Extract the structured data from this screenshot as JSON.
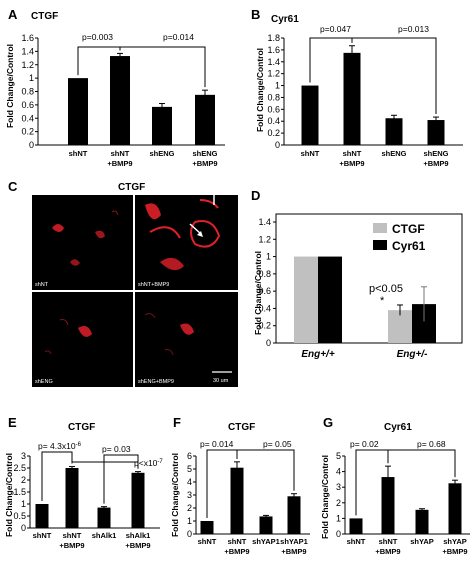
{
  "panels": {
    "A": {
      "label": "A",
      "title": "CTGF",
      "ylabel": "Fold Change/Control",
      "yticks": [
        "0",
        "0.2",
        "0.4",
        "0.6",
        "0.8",
        "1",
        "1.2",
        "1.4",
        "1.6"
      ],
      "categories": [
        [
          "shNT"
        ],
        [
          "shNT",
          "+BMP9"
        ],
        [
          "shENG"
        ],
        [
          "shENG",
          "+BMP9"
        ]
      ],
      "annotations": [
        "p=0.003",
        "p=0.014"
      ]
    },
    "B": {
      "label": "B",
      "title": "Cyr61",
      "ylabel": "Fold Change/Control",
      "yticks": [
        "0",
        "0.2",
        "0.4",
        "0.6",
        "0.8",
        "1",
        "1.2",
        "1.4",
        "1.6",
        "1.8"
      ],
      "categories": [
        [
          "shNT"
        ],
        [
          "shNT",
          "+BMP9"
        ],
        [
          "shENG"
        ],
        [
          "shENG",
          "+BMP9"
        ]
      ],
      "annotations": [
        "p=0.047",
        "p=0.013"
      ]
    },
    "C": {
      "label": "C",
      "title": "CTGF",
      "images": [
        "shNT",
        "shNT+BMP9",
        "shENG",
        "shENG+BMP9"
      ],
      "scale": "30 um"
    },
    "D": {
      "label": "D",
      "ylabel": "Fold Change/Control",
      "yticks": [
        "0",
        "0.2",
        "0.4",
        "0.6",
        "0.8",
        "1",
        "1.2",
        "1.4"
      ],
      "categories": [
        "Eng+/+",
        "Eng+/-"
      ],
      "legend": [
        "CTGF",
        "Cyr61"
      ],
      "annotation": "p<0.05",
      "star": "*"
    },
    "E": {
      "label": "E",
      "title": "CTGF",
      "ylabel": "Fold Change/Control",
      "yticks": [
        "0",
        "0.5",
        "1",
        "1.5",
        "2",
        "2.5",
        "3"
      ],
      "categories": [
        [
          "shNT"
        ],
        [
          "shNT",
          "+BMP9"
        ],
        [
          "shAlk1"
        ],
        [
          "shAlk1",
          "+BMP9"
        ]
      ],
      "ann1_base": "p= 4.3x10",
      "ann1_exp": "-6",
      "ann2": "p= 0.03",
      "ann3_base": "p<x10",
      "ann3_exp": "-7"
    },
    "F": {
      "label": "F",
      "title": "CTGF",
      "ylabel": "Fold Change/Control",
      "yticks": [
        "0",
        "1",
        "2",
        "3",
        "4",
        "5",
        "6"
      ],
      "categories": [
        [
          "shNT"
        ],
        [
          "shNT",
          "+BMP9"
        ],
        [
          "shYAP1"
        ],
        [
          "shYAP1",
          "+BMP9"
        ]
      ],
      "annotations": [
        "p= 0.014",
        "p= 0.05"
      ]
    },
    "G": {
      "label": "G",
      "title": "Cyr61",
      "ylabel": "Fold Change/Control",
      "yticks": [
        "0",
        "1",
        "2",
        "3",
        "4",
        "5"
      ],
      "categories": [
        [
          "shNT"
        ],
        [
          "shNT",
          "+BMP9"
        ],
        [
          "shYAP"
        ],
        [
          "shYAP",
          "+BMP9"
        ]
      ],
      "annotations": [
        "p= 0.02",
        "p= 0.68"
      ]
    }
  },
  "colors": {
    "bar": "#000000",
    "ctgf": "#c0c0c0",
    "cyr61": "#000000",
    "cell": "#e0202a"
  },
  "chart_data": [
    {
      "type": "bar",
      "panel": "A",
      "title": "CTGF",
      "ylabel": "Fold Change/Control",
      "ylim": [
        0,
        1.6
      ],
      "categories": [
        "shNT",
        "shNT +BMP9",
        "shENG",
        "shENG +BMP9"
      ],
      "values": [
        1.0,
        1.33,
        0.57,
        0.75
      ],
      "errors": [
        0,
        0.04,
        0.05,
        0.07
      ]
    },
    {
      "type": "bar",
      "panel": "B",
      "title": "Cyr61",
      "ylabel": "Fold Change/Control",
      "ylim": [
        0,
        1.8
      ],
      "categories": [
        "shNT",
        "shNT +BMP9",
        "shENG",
        "shENG +BMP9"
      ],
      "values": [
        1.0,
        1.55,
        0.45,
        0.42
      ],
      "errors": [
        0,
        0.12,
        0.05,
        0.05
      ]
    },
    {
      "type": "bar",
      "panel": "D",
      "ylabel": "Fold Change/Control",
      "ylim": [
        0,
        1.4
      ],
      "categories": [
        "Eng+/+",
        "Eng+/-"
      ],
      "series": [
        {
          "name": "CTGF",
          "values": [
            1.0,
            0.38
          ],
          "errors": [
            0,
            0.06
          ]
        },
        {
          "name": "Cyr61",
          "values": [
            1.0,
            0.45
          ],
          "errors": [
            0,
            0.2
          ]
        }
      ]
    },
    {
      "type": "bar",
      "panel": "E",
      "title": "CTGF",
      "ylabel": "Fold Change/Control",
      "ylim": [
        0,
        3
      ],
      "categories": [
        "shNT",
        "shNT +BMP9",
        "shAlk1",
        "shAlk1 +BMP9"
      ],
      "values": [
        1.0,
        2.5,
        0.85,
        2.3
      ],
      "errors": [
        0,
        0.06,
        0.04,
        0.05
      ]
    },
    {
      "type": "bar",
      "panel": "F",
      "title": "CTGF",
      "ylabel": "Fold Change/Control",
      "ylim": [
        0,
        6
      ],
      "categories": [
        "shNT",
        "shNT +BMP9",
        "shYAP1",
        "shYAP1 +BMP9"
      ],
      "values": [
        1.0,
        5.1,
        1.35,
        2.9
      ],
      "errors": [
        0,
        0.45,
        0.08,
        0.2
      ]
    },
    {
      "type": "bar",
      "panel": "G",
      "title": "Cyr61",
      "ylabel": "Fold Change/Control",
      "ylim": [
        0,
        5
      ],
      "categories": [
        "shNT",
        "shNT +BMP9",
        "shYAP",
        "shYAP +BMP9"
      ],
      "values": [
        1.0,
        3.65,
        1.55,
        3.25
      ],
      "errors": [
        0,
        0.7,
        0.07,
        0.2
      ]
    }
  ]
}
